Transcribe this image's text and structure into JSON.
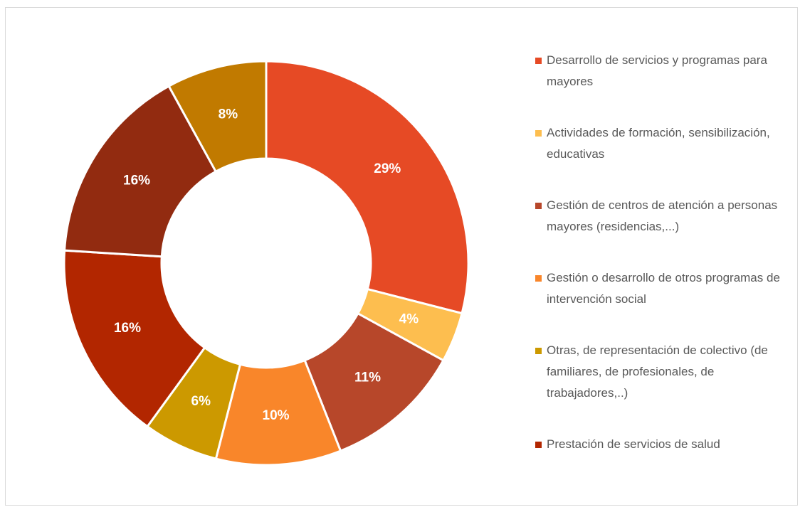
{
  "chart_data": {
    "type": "pie",
    "donut": true,
    "categories": [
      "Desarrollo de servicios y programas para mayores",
      "Actividades de formación, sensibilización, educativas",
      "Gestión de centros de atención a personas mayores (residencias,...)",
      "Gestión o desarrollo de otros programas de intervención social",
      "Otras, de representación de colectivo (de familiares, de profesionales, de trabajadores,..)",
      "Prestación de servicios de salud",
      null,
      null
    ],
    "values": [
      29,
      4,
      11,
      10,
      6,
      16,
      16,
      8
    ],
    "value_labels": [
      "29%",
      "4%",
      "11%",
      "10%",
      "6%",
      "16%",
      "16%",
      "8%"
    ],
    "colors": [
      "#e64a25",
      "#fdbe4f",
      "#b7472a",
      "#f9862a",
      "#cc9900",
      "#b22600",
      "#922b10",
      "#c17a00"
    ],
    "legend": "right"
  }
}
